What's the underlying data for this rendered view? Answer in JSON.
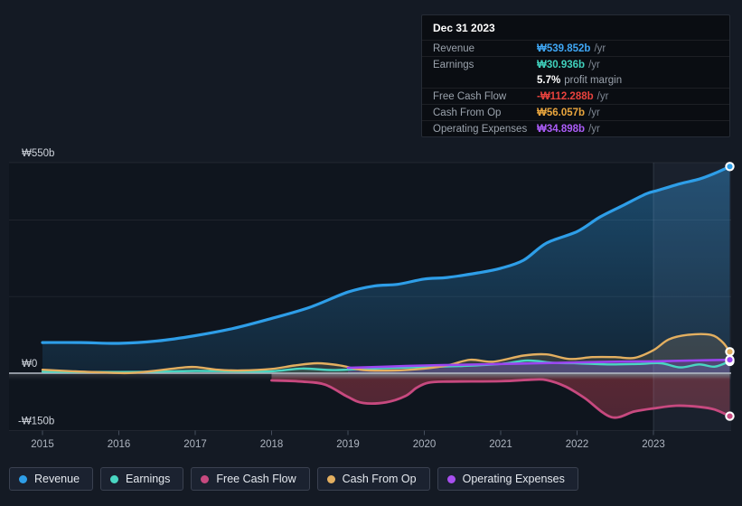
{
  "tooltip": {
    "date": "Dec 31 2023",
    "rows": [
      {
        "id": "revenue",
        "label": "Revenue",
        "value": "₩539.852b",
        "suffix": "/yr",
        "value_color": "#3FA7F5"
      },
      {
        "id": "earnings",
        "label": "Earnings",
        "value": "₩30.936b",
        "suffix": "/yr",
        "value_color": "#40D1BD",
        "extra_value": "5.7%",
        "extra_text": "profit margin"
      },
      {
        "id": "fcf",
        "label": "Free Cash Flow",
        "value": "-₩112.288b",
        "suffix": "/yr",
        "value_color": "#E8423D"
      },
      {
        "id": "cashop",
        "label": "Cash From Op",
        "value": "₩56.057b",
        "suffix": "/yr",
        "value_color": "#EAA63E"
      },
      {
        "id": "opex",
        "label": "Operating Expenses",
        "value": "₩34.898b",
        "suffix": "/yr",
        "value_color": "#AB5CF7"
      }
    ]
  },
  "legend": {
    "items": [
      {
        "id": "revenue",
        "label": "Revenue",
        "color": "#2E9EE8"
      },
      {
        "id": "earnings",
        "label": "Earnings",
        "color": "#49D6C2"
      },
      {
        "id": "fcf",
        "label": "Free Cash Flow",
        "color": "#C7497F"
      },
      {
        "id": "cashop",
        "label": "Cash From Op",
        "color": "#E3AF60"
      },
      {
        "id": "opex",
        "label": "Operating Expenses",
        "color": "#A84FF0"
      }
    ]
  },
  "chart_data": {
    "type": "area",
    "y_unit": "₩ billions",
    "x_axis": {
      "ticks": [
        "2015",
        "2016",
        "2017",
        "2018",
        "2019",
        "2020",
        "2021",
        "2022",
        "2023"
      ]
    },
    "y_axis": {
      "range": [
        -150,
        550
      ],
      "gridline_values": [
        550,
        400,
        200,
        0,
        -150
      ],
      "ticks": [
        {
          "label": "₩550b",
          "value": 550
        },
        {
          "label": "₩0",
          "value": 0
        },
        {
          "label": "-₩150b",
          "value": -150
        }
      ]
    },
    "highlight_band": {
      "from_year": 2023.0,
      "to_year": 2024.0
    },
    "series": [
      {
        "id": "revenue",
        "name": "Revenue",
        "color": "#2E9EE8",
        "width": 3.2,
        "points": [
          [
            2015,
            80
          ],
          [
            2015.5,
            80
          ],
          [
            2016,
            78
          ],
          [
            2016.5,
            84
          ],
          [
            2017,
            98
          ],
          [
            2017.5,
            117
          ],
          [
            2018,
            143
          ],
          [
            2018.5,
            172
          ],
          [
            2019,
            212
          ],
          [
            2019.35,
            228
          ],
          [
            2019.65,
            232
          ],
          [
            2020,
            246
          ],
          [
            2020.3,
            250
          ],
          [
            2020.7,
            262
          ],
          [
            2021,
            274
          ],
          [
            2021.3,
            295
          ],
          [
            2021.6,
            340
          ],
          [
            2022,
            370
          ],
          [
            2022.3,
            408
          ],
          [
            2022.6,
            438
          ],
          [
            2022.9,
            468
          ],
          [
            2023.05,
            477
          ],
          [
            2023.35,
            495
          ],
          [
            2023.6,
            507
          ],
          [
            2023.8,
            522
          ],
          [
            2024,
            539.852
          ]
        ]
      },
      {
        "id": "earnings",
        "name": "Earnings",
        "color": "#49D6C2",
        "width": 2.4,
        "points": [
          [
            2015,
            4
          ],
          [
            2015.5,
            3
          ],
          [
            2016,
            3
          ],
          [
            2016.5,
            4
          ],
          [
            2017,
            6
          ],
          [
            2017.5,
            5
          ],
          [
            2018,
            5
          ],
          [
            2018.4,
            12
          ],
          [
            2018.8,
            8
          ],
          [
            2019.2,
            11
          ],
          [
            2019.6,
            14
          ],
          [
            2020,
            16
          ],
          [
            2020.5,
            19
          ],
          [
            2021,
            24
          ],
          [
            2021.35,
            33
          ],
          [
            2021.7,
            27
          ],
          [
            2022,
            26
          ],
          [
            2022.4,
            23
          ],
          [
            2022.8,
            24
          ],
          [
            2023.1,
            26
          ],
          [
            2023.35,
            15
          ],
          [
            2023.6,
            23
          ],
          [
            2023.8,
            17
          ],
          [
            2024,
            30.936
          ]
        ]
      },
      {
        "id": "fcf",
        "name": "Free Cash Flow",
        "color": "#C7497F",
        "width": 2.8,
        "points": [
          [
            2018,
            -19
          ],
          [
            2018.4,
            -22
          ],
          [
            2018.7,
            -30
          ],
          [
            2019,
            -62
          ],
          [
            2019.2,
            -78
          ],
          [
            2019.5,
            -76
          ],
          [
            2019.75,
            -60
          ],
          [
            2019.9,
            -38
          ],
          [
            2020.05,
            -25
          ],
          [
            2020.3,
            -22
          ],
          [
            2021,
            -21
          ],
          [
            2021.4,
            -17
          ],
          [
            2021.6,
            -18
          ],
          [
            2021.85,
            -35
          ],
          [
            2022.1,
            -65
          ],
          [
            2022.45,
            -115
          ],
          [
            2022.75,
            -100
          ],
          [
            2023,
            -92
          ],
          [
            2023.3,
            -85
          ],
          [
            2023.6,
            -88
          ],
          [
            2023.8,
            -95
          ],
          [
            2024,
            -112.288
          ]
        ]
      },
      {
        "id": "cashop",
        "name": "Cash From Op",
        "color": "#E3AF60",
        "width": 2.4,
        "points": [
          [
            2015,
            9
          ],
          [
            2015.4,
            5
          ],
          [
            2015.8,
            2
          ],
          [
            2016.2,
            1
          ],
          [
            2016.8,
            14
          ],
          [
            2017,
            16
          ],
          [
            2017.3,
            9
          ],
          [
            2017.6,
            7
          ],
          [
            2018,
            11
          ],
          [
            2018.3,
            20
          ],
          [
            2018.6,
            26
          ],
          [
            2018.9,
            20
          ],
          [
            2019.2,
            8
          ],
          [
            2019.6,
            7
          ],
          [
            2020,
            12
          ],
          [
            2020.3,
            20
          ],
          [
            2020.6,
            35
          ],
          [
            2020.9,
            30
          ],
          [
            2021.3,
            46
          ],
          [
            2021.6,
            49
          ],
          [
            2021.9,
            37
          ],
          [
            2022.2,
            42
          ],
          [
            2022.5,
            42
          ],
          [
            2022.75,
            40
          ],
          [
            2023,
            60
          ],
          [
            2023.2,
            88
          ],
          [
            2023.45,
            100
          ],
          [
            2023.75,
            100
          ],
          [
            2023.9,
            82
          ],
          [
            2024,
            56.057
          ]
        ]
      },
      {
        "id": "opex",
        "name": "Operating Expenses",
        "color": "#9B45F0",
        "width": 2.6,
        "points": [
          [
            2019,
            14
          ],
          [
            2019.5,
            17
          ],
          [
            2020,
            20
          ],
          [
            2020.5,
            22
          ],
          [
            2021,
            24
          ],
          [
            2021.5,
            26
          ],
          [
            2022,
            28
          ],
          [
            2022.5,
            30
          ],
          [
            2023,
            31
          ],
          [
            2023.5,
            33
          ],
          [
            2024,
            34.898
          ]
        ]
      }
    ]
  }
}
